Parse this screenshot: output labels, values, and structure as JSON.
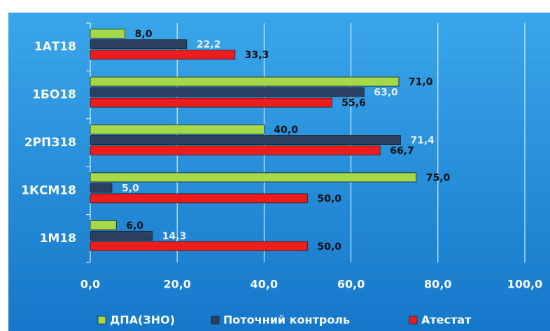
{
  "chart_data": {
    "type": "bar",
    "orientation": "horizontal",
    "categories": [
      "1АТ18",
      "1БО18",
      "2РПЗ18",
      "1КСМ18",
      "1М18"
    ],
    "series": [
      {
        "name": "ДПА(ЗНО)",
        "color": "#a6d94a",
        "values": [
          8.0,
          71.0,
          40.0,
          75.0,
          6.0
        ],
        "value_labels": [
          "8,0",
          "71,0",
          "40,0",
          "75,0",
          "6,0"
        ]
      },
      {
        "name": "Поточний контроль",
        "color": "#2b3f63",
        "values": [
          22.2,
          63.0,
          71.4,
          5.0,
          14.3
        ],
        "value_labels": [
          "22,2",
          "63,0",
          "71,4",
          "5,0",
          "14,3"
        ]
      },
      {
        "name": "Атестат",
        "color": "#ee1c1c",
        "values": [
          33.3,
          55.6,
          66.7,
          50.0,
          50.0
        ],
        "value_labels": [
          "33,3",
          "55,6",
          "66,7",
          "50,0",
          "50,0"
        ]
      }
    ],
    "xlim": [
      0,
      100
    ],
    "xticks": [
      {
        "value": 0,
        "label": "0,0"
      },
      {
        "value": 20,
        "label": "20,0"
      },
      {
        "value": 40,
        "label": "40,0"
      },
      {
        "value": 60,
        "label": "60,0"
      },
      {
        "value": 80,
        "label": "80,0"
      },
      {
        "value": 100,
        "label": "100,0"
      }
    ],
    "grid": true,
    "legend": "bottom"
  }
}
